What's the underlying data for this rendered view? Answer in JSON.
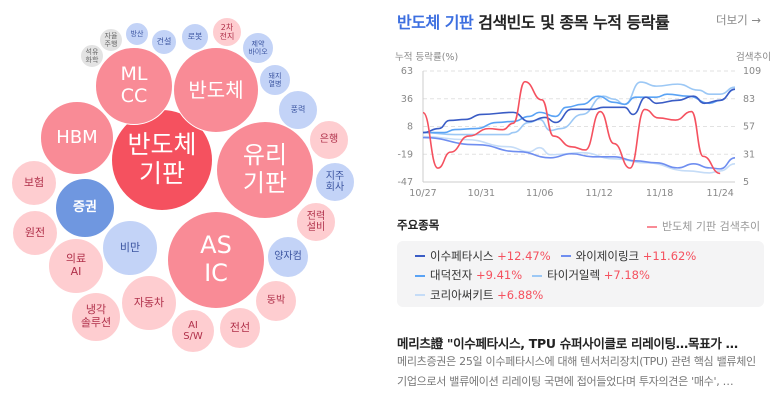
{
  "bubbles": [
    {
      "label": "반도체\n기판",
      "tone": "red"
    },
    {
      "label": "ML\nCC",
      "tone": "pink"
    },
    {
      "label": "반도체",
      "tone": "pink"
    },
    {
      "label": "HBM",
      "tone": "pink"
    },
    {
      "label": "유리\n기판",
      "tone": "pink"
    },
    {
      "label": "AS\nIC",
      "tone": "pink"
    },
    {
      "label": "증권",
      "tone": "blue"
    },
    {
      "label": "보험",
      "tone": "lpink"
    },
    {
      "label": "원전",
      "tone": "lpink"
    },
    {
      "label": "의료\nAI",
      "tone": "lpink"
    },
    {
      "label": "비만",
      "tone": "lblue"
    },
    {
      "label": "냉각\n솔루션",
      "tone": "lpink"
    },
    {
      "label": "자동차",
      "tone": "lpink"
    },
    {
      "label": "AI\nS/W",
      "tone": "lpink"
    },
    {
      "label": "전선",
      "tone": "lpink"
    },
    {
      "label": "동박",
      "tone": "lpink"
    },
    {
      "label": "양자컴",
      "tone": "lblue"
    },
    {
      "label": "전력\n설비",
      "tone": "lpink"
    },
    {
      "label": "지주\n회사",
      "tone": "lblue"
    },
    {
      "label": "은행",
      "tone": "lpink"
    },
    {
      "label": "풍력",
      "tone": "lblue"
    },
    {
      "label": "돼지\n열병",
      "tone": "lblue"
    },
    {
      "label": "제약\n바이오",
      "tone": "lblue"
    },
    {
      "label": "2차\n전지",
      "tone": "lpink"
    },
    {
      "label": "로봇",
      "tone": "lblue"
    },
    {
      "label": "건설",
      "tone": "lblue"
    },
    {
      "label": "방산",
      "tone": "lblue"
    },
    {
      "label": "자율\n주행",
      "tone": "grey"
    },
    {
      "label": "석유\n화학",
      "tone": "grey"
    }
  ],
  "header": {
    "keyword": "반도체 기판",
    "title_rest": " 검색빈도 및 종목 누적 등락률",
    "more": "더보기 →"
  },
  "chart_data": {
    "type": "line",
    "ylabel": "누적 등락률(%)",
    "y2label": "검색추이",
    "ylim": [
      -47,
      63
    ],
    "yticks": [
      "63",
      "36",
      "8",
      "-19",
      "-47"
    ],
    "y2lim": [
      5,
      109
    ],
    "y2ticks": [
      "109",
      "83",
      "57",
      "31",
      "5"
    ],
    "xlim": [
      0,
      29.4
    ],
    "xticks": [
      {
        "x": 0,
        "label": "10/27"
      },
      {
        "x": 5.5,
        "label": "10/31"
      },
      {
        "x": 11,
        "label": "11/06"
      },
      {
        "x": 16.6,
        "label": "11/12"
      },
      {
        "x": 22.3,
        "label": "11/18"
      },
      {
        "x": 28,
        "label": "11/24"
      }
    ],
    "search": {
      "name": "반도체 기판 검색추이",
      "color": "#f5515f",
      "axis": "right",
      "points": [
        [
          0,
          70
        ],
        [
          1.4,
          18
        ],
        [
          2.6,
          33
        ],
        [
          4.3,
          48
        ],
        [
          6.2,
          55
        ],
        [
          7.5,
          54
        ],
        [
          8.5,
          60
        ],
        [
          9.6,
          99
        ],
        [
          11.2,
          82
        ],
        [
          12.3,
          48
        ],
        [
          14,
          38
        ],
        [
          15.3,
          35
        ],
        [
          16.7,
          71
        ],
        [
          18,
          41
        ],
        [
          19.5,
          18
        ],
        [
          20.9,
          73
        ],
        [
          22.2,
          65
        ],
        [
          23.8,
          63
        ],
        [
          25.3,
          71
        ],
        [
          26.4,
          29
        ],
        [
          28,
          13
        ]
      ]
    },
    "series": [
      {
        "name": "이수페타시스",
        "change": "+12.47%",
        "color": "#3a5cc5",
        "points": [
          [
            0,
            2
          ],
          [
            1.5,
            6
          ],
          [
            2.5,
            14
          ],
          [
            4,
            15
          ],
          [
            5.5,
            20
          ],
          [
            8.5,
            22
          ],
          [
            10,
            13
          ],
          [
            11.5,
            17
          ],
          [
            12.5,
            12
          ],
          [
            14,
            25
          ],
          [
            16,
            25
          ],
          [
            17,
            27
          ],
          [
            19,
            27
          ],
          [
            19.8,
            20
          ],
          [
            21,
            37
          ],
          [
            22,
            31
          ],
          [
            24,
            34
          ],
          [
            25.5,
            38
          ],
          [
            26.5,
            31
          ],
          [
            28,
            34
          ],
          [
            29.4,
            45
          ]
        ]
      },
      {
        "name": "와이제이링크",
        "change": "+11.62%",
        "color": "#6f8ef0",
        "points": [
          [
            0,
            -3
          ],
          [
            5,
            -10
          ],
          [
            9,
            -17
          ],
          [
            12,
            -23
          ],
          [
            14,
            -19
          ],
          [
            16,
            -22
          ],
          [
            18,
            -22
          ],
          [
            20,
            -26
          ],
          [
            22,
            -28
          ],
          [
            24,
            -33
          ],
          [
            25.5,
            -29
          ],
          [
            27,
            -33
          ],
          [
            28,
            -34
          ],
          [
            29.4,
            -23
          ]
        ]
      },
      {
        "name": "대덕전자",
        "change": "+9.41%",
        "color": "#5aa3f5",
        "points": [
          [
            0,
            2
          ],
          [
            2,
            2
          ],
          [
            3,
            5
          ],
          [
            5,
            6
          ],
          [
            7,
            12
          ],
          [
            8.5,
            13
          ],
          [
            10,
            18
          ],
          [
            11,
            22
          ],
          [
            12.5,
            18
          ],
          [
            13.5,
            27
          ],
          [
            15,
            30
          ],
          [
            16.5,
            38
          ],
          [
            18,
            32
          ],
          [
            19,
            30
          ],
          [
            20,
            37
          ],
          [
            22,
            37
          ],
          [
            23,
            40
          ],
          [
            25,
            38
          ],
          [
            27,
            31
          ],
          [
            28,
            34
          ],
          [
            29.4,
            45
          ]
        ]
      },
      {
        "name": "타이거일렉",
        "change": "+7.18%",
        "color": "#9cc8f5",
        "points": [
          [
            0,
            2
          ],
          [
            3,
            0
          ],
          [
            5,
            0
          ],
          [
            8,
            0
          ],
          [
            8.5,
            2
          ],
          [
            10,
            12
          ],
          [
            11,
            15
          ],
          [
            12,
            4
          ],
          [
            13,
            6
          ],
          [
            15,
            20
          ],
          [
            17,
            38
          ],
          [
            18,
            35
          ],
          [
            19,
            30
          ],
          [
            20.5,
            52
          ],
          [
            22,
            48
          ],
          [
            24,
            50
          ],
          [
            26,
            44
          ],
          [
            27,
            40
          ],
          [
            28,
            40
          ],
          [
            29.4,
            47
          ]
        ]
      },
      {
        "name": "코리아써키트",
        "change": "+6.88%",
        "color": "#c5dcf7",
        "points": [
          [
            0,
            -2
          ],
          [
            4,
            -5
          ],
          [
            8,
            -12
          ],
          [
            10,
            -17
          ],
          [
            11,
            -13
          ],
          [
            12,
            -20
          ],
          [
            15,
            -18
          ],
          [
            18,
            -24
          ],
          [
            21,
            -28
          ],
          [
            25,
            -36
          ],
          [
            27,
            -38
          ],
          [
            28,
            -36
          ],
          [
            29.4,
            -29
          ]
        ]
      }
    ]
  },
  "stocks_section": {
    "title": "주요종목"
  },
  "news": {
    "title": "메리츠證 \"이수페타시스, TPU 슈퍼사이클로 리레이팅…목표가 …",
    "body": "메리츠증권은 25일 이수페타시스에 대해 텐서처리장치(TPU) 관련 핵심 밸류체인 기업으로서 밸류에이션 리레이팅 국면에 접어들었다며 투자의견은 '매수', …"
  }
}
